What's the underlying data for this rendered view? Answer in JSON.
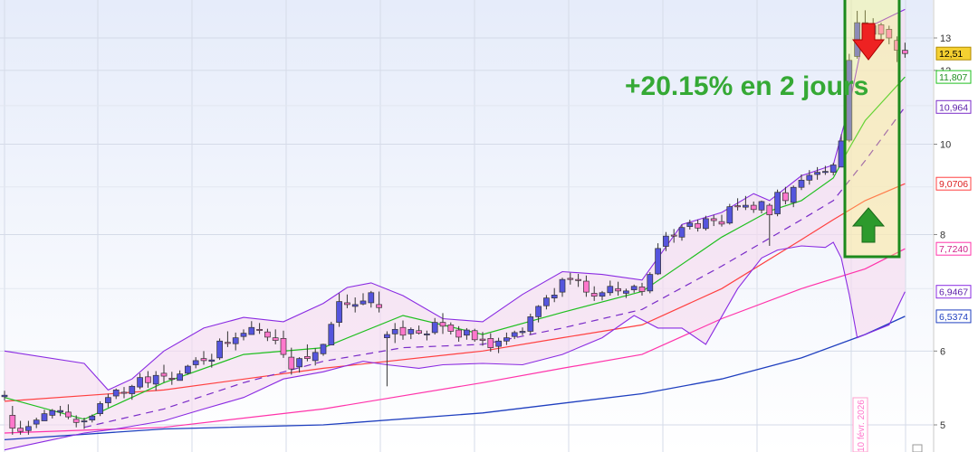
{
  "annotation_text": "+20.15% en 2 jours",
  "date_marker": "10 févr. 2026",
  "colors": {
    "bg_top": "#e6ecfa",
    "bg_bottom": "#ffffff",
    "price_tag": "#f5d031",
    "ma20": "#1fbf1f",
    "ma_dashed": "#7a2cc8",
    "bollinger": "#8a2be2",
    "bollinger_fill": "#f6dcef",
    "ma50": "#ff4040",
    "ma100": "#ff33aa",
    "ma200": "#1f3fbf",
    "bull_candle": "#5555dd",
    "bear_candle": "#ff77cc",
    "annotation": "#35a935",
    "highlight_box": "#1c8a1c",
    "arrow_up": "#2c9a2c",
    "arrow_down": "#ee2222"
  },
  "chart_data": {
    "type": "candlestick",
    "y_axis": {
      "min": 4.6,
      "max": 13.9,
      "ticks": [
        5,
        6,
        8,
        10,
        12,
        13
      ]
    },
    "grid": true,
    "price_labels": [
      {
        "id": "last-price",
        "value": "12,51",
        "y": 12.51,
        "border": "#b08a00",
        "fill": "#f5d031",
        "text": "#000000"
      },
      {
        "id": "ma20",
        "value": "11,807",
        "y": 11.807,
        "border": "#1fbf1f",
        "fill": "#ffffff",
        "text": "#1f8f1f"
      },
      {
        "id": "ma-dashed",
        "value": "10,964",
        "y": 10.964,
        "border": "#7a2cc8",
        "fill": "#ffffff",
        "text": "#5a1ca8"
      },
      {
        "id": "ma50",
        "value": "9,0706",
        "y": 9.0706,
        "border": "#ff4040",
        "fill": "#ffffff",
        "text": "#dd2020"
      },
      {
        "id": "ma100",
        "value": "7,7240",
        "y": 7.724,
        "border": "#ff33aa",
        "fill": "#ffffff",
        "text": "#cc2288"
      },
      {
        "id": "bollinger-low",
        "value": "6,9467",
        "y": 6.9467,
        "border": "#8a2be2",
        "fill": "#ffffff",
        "text": "#5a1ca8"
      },
      {
        "id": "ma200",
        "value": "6,5374",
        "y": 6.5374,
        "border": "#1f3fbf",
        "fill": "#ffffff",
        "text": "#1f3fbf"
      }
    ],
    "candles": [
      [
        0,
        5.36,
        5.44,
        5.31,
        5.38
      ],
      [
        1,
        5.12,
        5.24,
        4.88,
        4.96
      ],
      [
        2,
        4.96,
        5.05,
        4.88,
        4.92
      ],
      [
        3,
        4.93,
        5.05,
        4.88,
        4.98
      ],
      [
        4,
        5.01,
        5.09,
        4.96,
        5.06
      ],
      [
        5,
        5.05,
        5.19,
        5.05,
        5.14
      ],
      [
        6,
        5.12,
        5.2,
        5.08,
        5.18
      ],
      [
        7,
        5.16,
        5.24,
        5.11,
        5.18
      ],
      [
        8,
        5.16,
        5.26,
        5.07,
        5.1
      ],
      [
        9,
        5.07,
        5.12,
        4.97,
        5.03
      ],
      [
        10,
        5.04,
        5.09,
        4.95,
        5.05
      ],
      [
        11,
        5.06,
        5.13,
        5.03,
        5.11
      ],
      [
        12,
        5.14,
        5.3,
        5.11,
        5.27
      ],
      [
        13,
        5.28,
        5.4,
        5.22,
        5.35
      ],
      [
        14,
        5.37,
        5.47,
        5.33,
        5.45
      ],
      [
        15,
        5.42,
        5.49,
        5.34,
        5.41
      ],
      [
        16,
        5.4,
        5.52,
        5.32,
        5.5
      ],
      [
        17,
        5.49,
        5.68,
        5.46,
        5.62
      ],
      [
        18,
        5.63,
        5.71,
        5.48,
        5.55
      ],
      [
        19,
        5.53,
        5.71,
        5.44,
        5.65
      ],
      [
        20,
        5.68,
        5.8,
        5.55,
        5.64
      ],
      [
        21,
        5.61,
        5.7,
        5.52,
        5.6
      ],
      [
        22,
        5.58,
        5.72,
        5.58,
        5.67
      ],
      [
        23,
        5.68,
        5.8,
        5.66,
        5.78
      ],
      [
        24,
        5.8,
        5.91,
        5.75,
        5.86
      ],
      [
        25,
        5.89,
        6.0,
        5.8,
        5.86
      ],
      [
        26,
        5.85,
        5.96,
        5.76,
        5.87
      ],
      [
        27,
        5.9,
        6.19,
        5.87,
        6.15
      ],
      [
        28,
        6.13,
        6.3,
        6.06,
        6.12
      ],
      [
        29,
        6.11,
        6.28,
        6.01,
        6.2
      ],
      [
        30,
        6.22,
        6.33,
        6.16,
        6.27
      ],
      [
        31,
        6.25,
        6.46,
        6.25,
        6.36
      ],
      [
        32,
        6.33,
        6.43,
        6.26,
        6.32
      ],
      [
        33,
        6.29,
        6.34,
        6.15,
        6.21
      ],
      [
        34,
        6.2,
        6.33,
        6.1,
        6.16
      ],
      [
        35,
        6.19,
        6.31,
        5.9,
        5.95
      ],
      [
        36,
        5.91,
        6.05,
        5.66,
        5.74
      ],
      [
        37,
        5.77,
        5.91,
        5.69,
        5.89
      ],
      [
        38,
        5.92,
        6.1,
        5.85,
        5.89
      ],
      [
        39,
        5.86,
        6.04,
        5.79,
        5.98
      ],
      [
        40,
        5.96,
        6.11,
        5.93,
        6.1
      ],
      [
        41,
        6.09,
        6.45,
        6.09,
        6.41
      ],
      [
        42,
        6.44,
        6.92,
        6.37,
        6.78
      ],
      [
        43,
        6.76,
        6.9,
        6.67,
        6.73
      ],
      [
        44,
        6.7,
        6.85,
        6.6,
        6.73
      ],
      [
        45,
        6.74,
        6.92,
        6.72,
        6.79
      ],
      [
        46,
        6.76,
        6.96,
        6.68,
        6.93
      ],
      [
        47,
        6.73,
        6.95,
        6.6,
        6.68
      ],
      [
        48,
        6.2,
        6.3,
        5.5,
        6.25
      ],
      [
        49,
        6.26,
        6.43,
        6.12,
        6.33
      ],
      [
        50,
        6.36,
        6.47,
        6.17,
        6.24
      ],
      [
        51,
        6.26,
        6.36,
        6.18,
        6.33
      ],
      [
        52,
        6.31,
        6.39,
        6.25,
        6.27
      ],
      [
        53,
        6.25,
        6.31,
        6.16,
        6.26
      ],
      [
        54,
        6.28,
        6.51,
        6.25,
        6.44
      ],
      [
        55,
        6.44,
        6.59,
        6.26,
        6.38
      ],
      [
        56,
        6.4,
        6.44,
        6.25,
        6.3
      ],
      [
        57,
        6.32,
        6.38,
        6.14,
        6.21
      ],
      [
        58,
        6.24,
        6.35,
        6.17,
        6.32
      ],
      [
        59,
        6.31,
        6.34,
        6.14,
        6.17
      ],
      [
        60,
        6.18,
        6.29,
        6.08,
        6.16
      ],
      [
        61,
        6.19,
        6.27,
        5.99,
        6.05
      ],
      [
        62,
        6.07,
        6.2,
        5.97,
        6.15
      ],
      [
        63,
        6.15,
        6.28,
        6.09,
        6.2
      ],
      [
        64,
        6.22,
        6.31,
        6.18,
        6.28
      ],
      [
        65,
        6.28,
        6.36,
        6.24,
        6.3
      ],
      [
        66,
        6.3,
        6.58,
        6.25,
        6.53
      ],
      [
        67,
        6.53,
        6.72,
        6.44,
        6.7
      ],
      [
        68,
        6.71,
        6.89,
        6.65,
        6.84
      ],
      [
        69,
        6.84,
        7.01,
        6.77,
        6.89
      ],
      [
        70,
        6.94,
        7.19,
        6.86,
        7.16
      ],
      [
        71,
        7.18,
        7.28,
        7.07,
        7.16
      ],
      [
        72,
        7.16,
        7.26,
        7.03,
        7.15
      ],
      [
        73,
        7.13,
        7.23,
        6.86,
        6.94
      ],
      [
        74,
        6.92,
        7.04,
        6.79,
        6.87
      ],
      [
        75,
        6.87,
        6.96,
        6.8,
        6.93
      ],
      [
        76,
        6.93,
        7.14,
        6.88,
        7.04
      ],
      [
        77,
        7.0,
        7.12,
        6.88,
        6.96
      ],
      [
        78,
        6.92,
        7.0,
        6.84,
        6.96
      ],
      [
        79,
        6.98,
        7.07,
        6.93,
        7.04
      ],
      [
        80,
        7.03,
        7.1,
        6.88,
        6.95
      ],
      [
        81,
        6.96,
        7.29,
        6.92,
        7.25
      ],
      [
        82,
        7.26,
        7.83,
        7.24,
        7.73
      ],
      [
        83,
        7.77,
        8.05,
        7.68,
        7.97
      ],
      [
        84,
        7.99,
        8.11,
        7.84,
        7.97
      ],
      [
        85,
        7.95,
        8.2,
        7.88,
        8.14
      ],
      [
        86,
        8.16,
        8.3,
        8.1,
        8.23
      ],
      [
        87,
        8.22,
        8.3,
        8.06,
        8.13
      ],
      [
        88,
        8.12,
        8.38,
        8.08,
        8.32
      ],
      [
        89,
        8.32,
        8.4,
        8.17,
        8.28
      ],
      [
        90,
        8.26,
        8.4,
        8.16,
        8.21
      ],
      [
        91,
        8.23,
        8.63,
        8.2,
        8.57
      ],
      [
        92,
        8.59,
        8.75,
        8.49,
        8.58
      ],
      [
        93,
        8.56,
        8.8,
        8.5,
        8.6
      ],
      [
        94,
        8.6,
        8.68,
        8.44,
        8.51
      ],
      [
        95,
        8.5,
        8.7,
        8.43,
        8.68
      ],
      [
        96,
        8.6,
        8.64,
        7.78,
        8.4
      ],
      [
        97,
        8.42,
        8.94,
        8.37,
        8.88
      ],
      [
        98,
        8.87,
        9.0,
        8.62,
        8.7
      ],
      [
        99,
        8.66,
        9.03,
        8.56,
        8.99
      ],
      [
        100,
        8.99,
        9.28,
        8.93,
        9.15
      ],
      [
        101,
        9.15,
        9.38,
        9.05,
        9.26
      ],
      [
        102,
        9.28,
        9.45,
        9.16,
        9.33
      ],
      [
        103,
        9.33,
        9.48,
        9.27,
        9.35
      ],
      [
        104,
        9.33,
        9.55,
        9.26,
        9.5
      ],
      [
        105,
        9.45,
        10.25,
        9.45,
        10.08
      ],
      [
        106,
        10.1,
        12.5,
        10.05,
        12.3
      ],
      [
        107,
        12.42,
        13.9,
        12.35,
        13.5
      ],
      [
        108,
        13.5,
        13.92,
        13.0,
        13.2
      ],
      [
        109,
        13.12,
        13.65,
        13.05,
        13.4
      ],
      [
        110,
        13.43,
        13.5,
        12.85,
        13.12
      ],
      [
        111,
        13.28,
        13.4,
        12.8,
        13.0
      ],
      [
        112,
        12.92,
        13.05,
        12.25,
        12.61
      ],
      [
        113,
        12.61,
        12.85,
        12.38,
        12.51
      ]
    ],
    "series": [
      {
        "name": "ma20",
        "values": [
          [
            0,
            5.35
          ],
          [
            10,
            5.07
          ],
          [
            20,
            5.55
          ],
          [
            30,
            5.95
          ],
          [
            40,
            6.05
          ],
          [
            50,
            6.55
          ],
          [
            60,
            6.25
          ],
          [
            70,
            6.6
          ],
          [
            80,
            6.95
          ],
          [
            90,
            7.95
          ],
          [
            96,
            8.48
          ],
          [
            100,
            8.7
          ],
          [
            104,
            9.2
          ],
          [
            106,
            9.9
          ],
          [
            108,
            10.6
          ],
          [
            113,
            11.807
          ]
        ]
      },
      {
        "name": "ma_dashed",
        "values": [
          [
            10,
            4.97
          ],
          [
            20,
            5.2
          ],
          [
            30,
            5.55
          ],
          [
            40,
            5.85
          ],
          [
            50,
            6.05
          ],
          [
            60,
            6.1
          ],
          [
            70,
            6.35
          ],
          [
            80,
            6.65
          ],
          [
            90,
            7.4
          ],
          [
            100,
            8.3
          ],
          [
            104,
            8.7
          ],
          [
            108,
            9.6
          ],
          [
            113,
            10.964
          ]
        ]
      },
      {
        "name": "ma50",
        "values": [
          [
            0,
            5.3
          ],
          [
            20,
            5.45
          ],
          [
            40,
            5.75
          ],
          [
            60,
            6.0
          ],
          [
            70,
            6.2
          ],
          [
            80,
            6.4
          ],
          [
            90,
            7.0
          ],
          [
            100,
            7.9
          ],
          [
            104,
            8.3
          ],
          [
            108,
            8.7
          ],
          [
            113,
            9.0706
          ]
        ]
      },
      {
        "name": "ma100",
        "values": [
          [
            0,
            4.9
          ],
          [
            20,
            4.97
          ],
          [
            40,
            5.2
          ],
          [
            60,
            5.55
          ],
          [
            70,
            5.75
          ],
          [
            80,
            5.95
          ],
          [
            90,
            6.5
          ],
          [
            100,
            7.0
          ],
          [
            108,
            7.35
          ],
          [
            113,
            7.724
          ]
        ]
      },
      {
        "name": "ma200",
        "values": [
          [
            0,
            4.82
          ],
          [
            20,
            4.95
          ],
          [
            40,
            5.0
          ],
          [
            60,
            5.15
          ],
          [
            80,
            5.4
          ],
          [
            90,
            5.6
          ],
          [
            100,
            5.9
          ],
          [
            108,
            6.25
          ],
          [
            113,
            6.5374
          ]
        ]
      },
      {
        "name": "bollinger_upper",
        "values": [
          [
            0,
            6.0
          ],
          [
            10,
            5.82
          ],
          [
            13,
            5.45
          ],
          [
            16,
            5.6
          ],
          [
            20,
            6.0
          ],
          [
            25,
            6.35
          ],
          [
            30,
            6.52
          ],
          [
            35,
            6.45
          ],
          [
            40,
            6.75
          ],
          [
            43,
            7.02
          ],
          [
            46,
            7.1
          ],
          [
            50,
            6.88
          ],
          [
            55,
            6.5
          ],
          [
            60,
            6.45
          ],
          [
            65,
            6.9
          ],
          [
            70,
            7.3
          ],
          [
            75,
            7.25
          ],
          [
            80,
            7.15
          ],
          [
            85,
            8.2
          ],
          [
            90,
            8.45
          ],
          [
            94,
            8.85
          ],
          [
            96,
            8.7
          ],
          [
            100,
            9.25
          ],
          [
            104,
            9.5
          ],
          [
            106,
            11.0
          ],
          [
            108,
            13.3
          ],
          [
            113,
            13.95
          ]
        ]
      },
      {
        "name": "bollinger_lower",
        "values": [
          [
            0,
            4.7
          ],
          [
            5,
            4.8
          ],
          [
            10,
            4.9
          ],
          [
            14,
            4.95
          ],
          [
            20,
            5.05
          ],
          [
            25,
            5.2
          ],
          [
            30,
            5.35
          ],
          [
            35,
            5.6
          ],
          [
            40,
            5.7
          ],
          [
            45,
            5.85
          ],
          [
            48,
            5.8
          ],
          [
            52,
            5.75
          ],
          [
            55,
            5.8
          ],
          [
            60,
            5.82
          ],
          [
            65,
            5.8
          ],
          [
            70,
            5.95
          ],
          [
            75,
            6.2
          ],
          [
            79,
            6.55
          ],
          [
            82,
            6.35
          ],
          [
            85,
            6.35
          ],
          [
            88,
            6.1
          ],
          [
            92,
            7.0
          ],
          [
            95,
            7.55
          ],
          [
            97,
            7.7
          ],
          [
            100,
            7.78
          ],
          [
            103,
            7.75
          ],
          [
            104,
            7.85
          ],
          [
            105,
            7.55
          ],
          [
            106,
            6.9
          ],
          [
            107,
            6.2
          ],
          [
            109,
            6.3
          ],
          [
            111,
            6.4
          ],
          [
            113,
            6.9467
          ]
        ]
      }
    ]
  }
}
